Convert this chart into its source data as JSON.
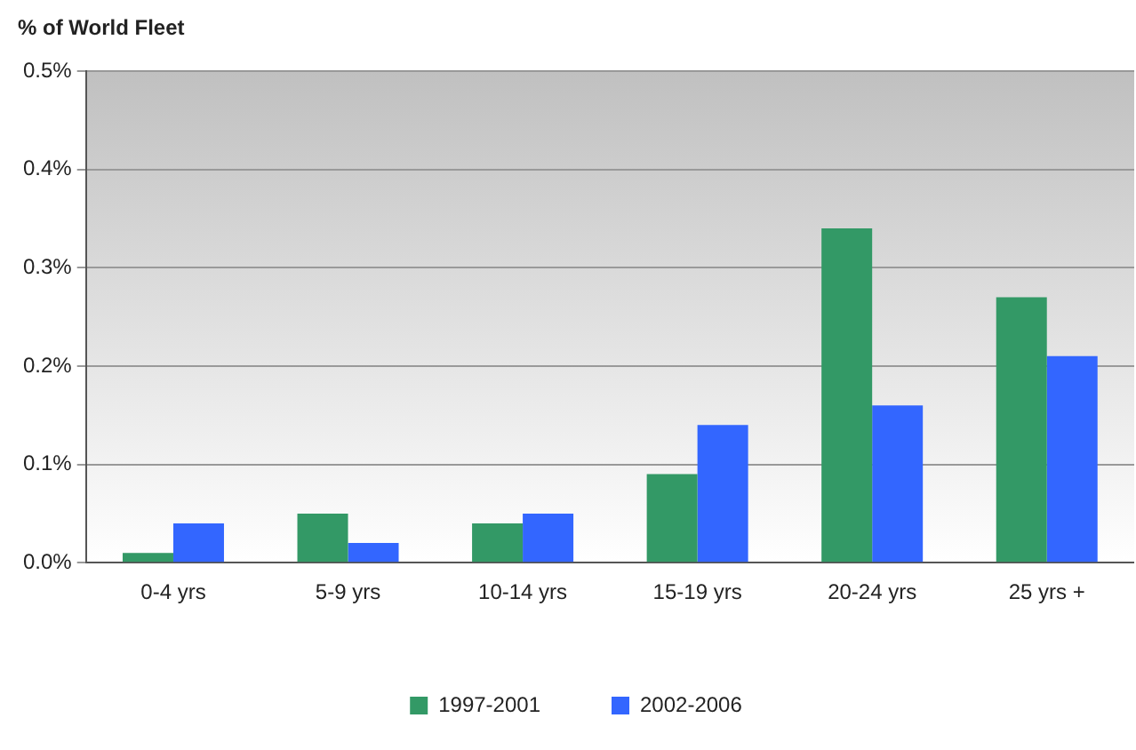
{
  "chart_data": {
    "type": "bar",
    "ylabel": "% of World Fleet",
    "categories": [
      "0-4 yrs",
      "5-9 yrs",
      "10-14 yrs",
      "15-19 yrs",
      "20-24 yrs",
      "25 yrs +"
    ],
    "series": [
      {
        "name": "1997-2001",
        "color": "#339966",
        "values": [
          0.01,
          0.05,
          0.04,
          0.09,
          0.34,
          0.27
        ]
      },
      {
        "name": "2002-2006",
        "color": "#3366ff",
        "values": [
          0.04,
          0.02,
          0.05,
          0.14,
          0.16,
          0.21
        ]
      }
    ],
    "ylim": [
      0,
      0.5
    ],
    "yticks": [
      {
        "value": 0,
        "label": "0.0%"
      },
      {
        "value": 0.1,
        "label": "0.1%"
      },
      {
        "value": 0.2,
        "label": "0.2%"
      },
      {
        "value": 0.3,
        "label": "0.3%"
      },
      {
        "value": 0.4,
        "label": "0.4%"
      },
      {
        "value": 0.5,
        "label": "0.5%"
      }
    ],
    "grid": "y",
    "legend": "bottom"
  }
}
